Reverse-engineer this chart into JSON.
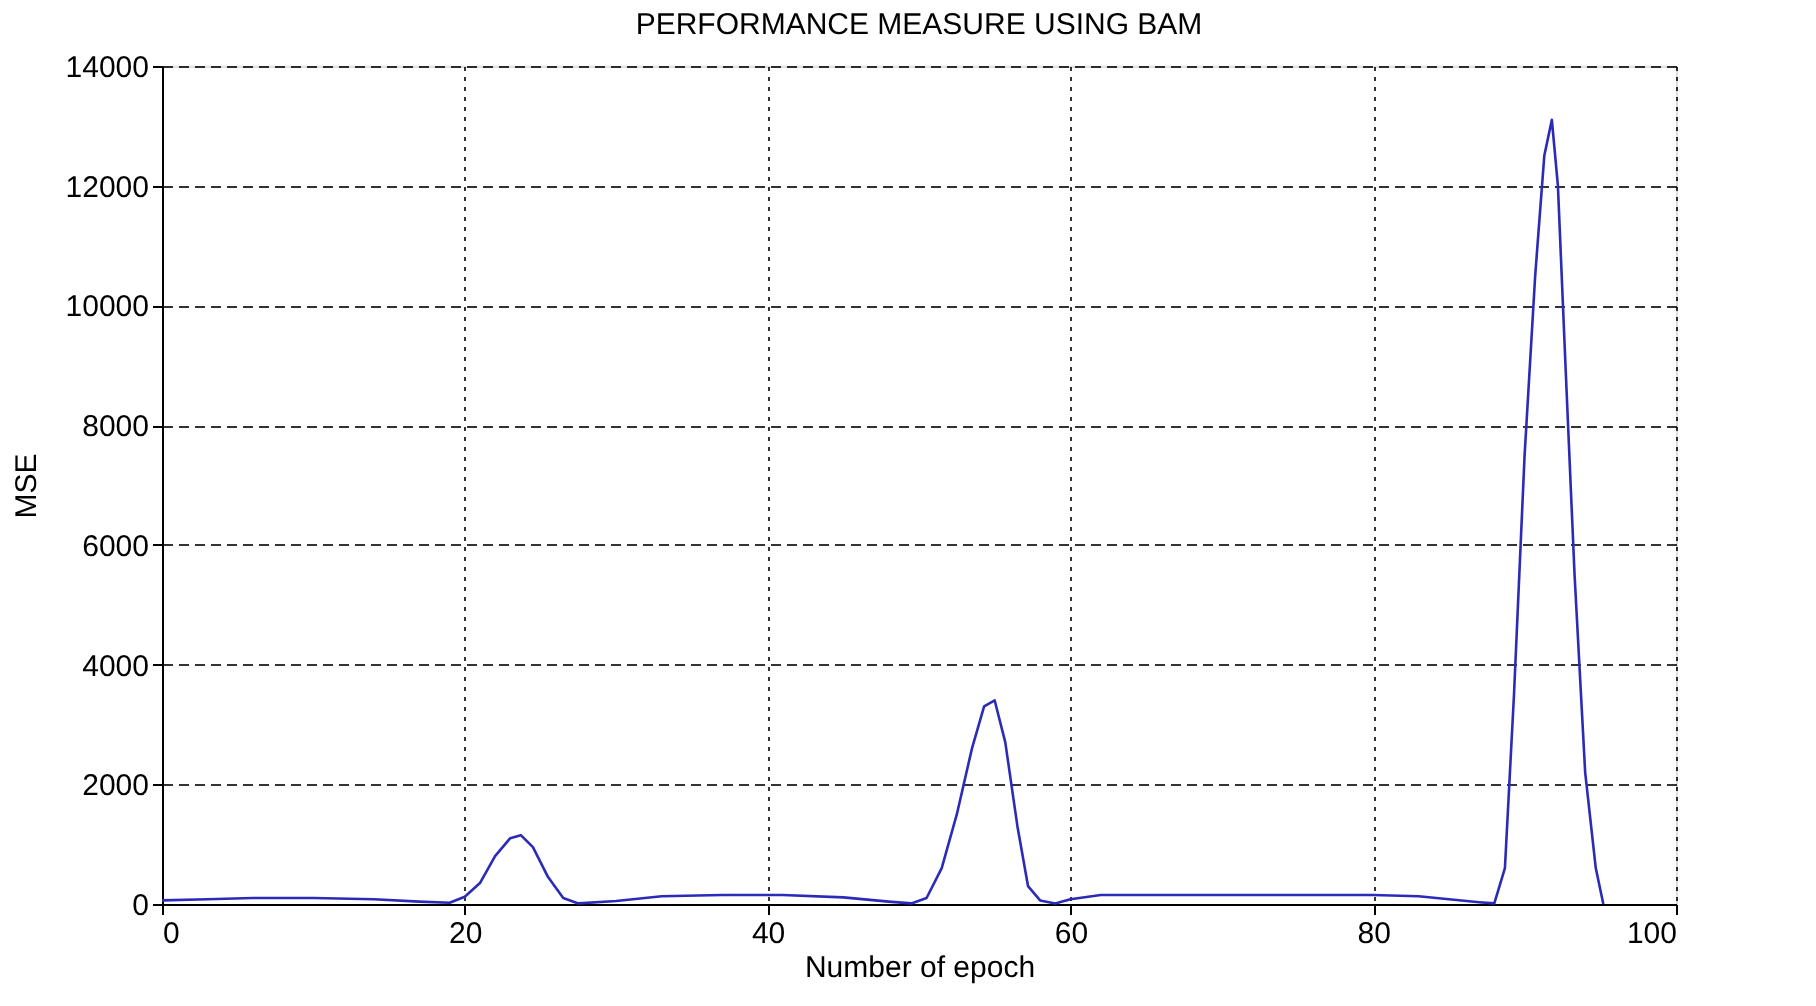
{
  "chart_data": {
    "type": "line",
    "title": "PERFORMANCE MEASURE USING BAM",
    "xlabel": "Number of epoch",
    "ylabel": "MSE",
    "xlim": [
      0,
      100
    ],
    "xticks": [
      0,
      20,
      40,
      60,
      80,
      100
    ],
    "ylim": [
      0,
      14000
    ],
    "yticks": [
      0,
      2000,
      4000,
      6000,
      8000,
      10000,
      12000,
      14000
    ],
    "grid": true,
    "line_style": "solid",
    "series": [
      {
        "color": "#2b2bb8",
        "x": [
          0,
          3,
          6,
          10,
          14,
          17,
          19,
          20,
          21,
          22,
          23,
          23.7,
          24.5,
          25.5,
          26.5,
          27.5,
          30,
          33,
          37,
          41,
          45,
          48,
          49.5,
          50.5,
          51.5,
          52.5,
          53.5,
          54.3,
          55,
          55.7,
          56.5,
          57.2,
          58,
          59,
          60,
          62,
          66,
          70,
          75,
          80,
          83,
          85,
          87,
          88,
          88.7,
          89.3,
          90,
          90.7,
          91.3,
          91.8,
          92.2,
          92.7,
          93.3,
          94,
          94.7,
          95.2
        ],
        "values": [
          60,
          80,
          100,
          100,
          80,
          40,
          20,
          120,
          350,
          800,
          1100,
          1150,
          950,
          450,
          100,
          10,
          50,
          130,
          150,
          150,
          110,
          40,
          10,
          100,
          600,
          1500,
          2600,
          3300,
          3400,
          2700,
          1300,
          300,
          60,
          10,
          80,
          150,
          150,
          150,
          150,
          150,
          130,
          80,
          30,
          10,
          600,
          3500,
          7500,
          10500,
          12500,
          13100,
          12000,
          9000,
          5500,
          2200,
          600,
          0
        ]
      }
    ]
  }
}
